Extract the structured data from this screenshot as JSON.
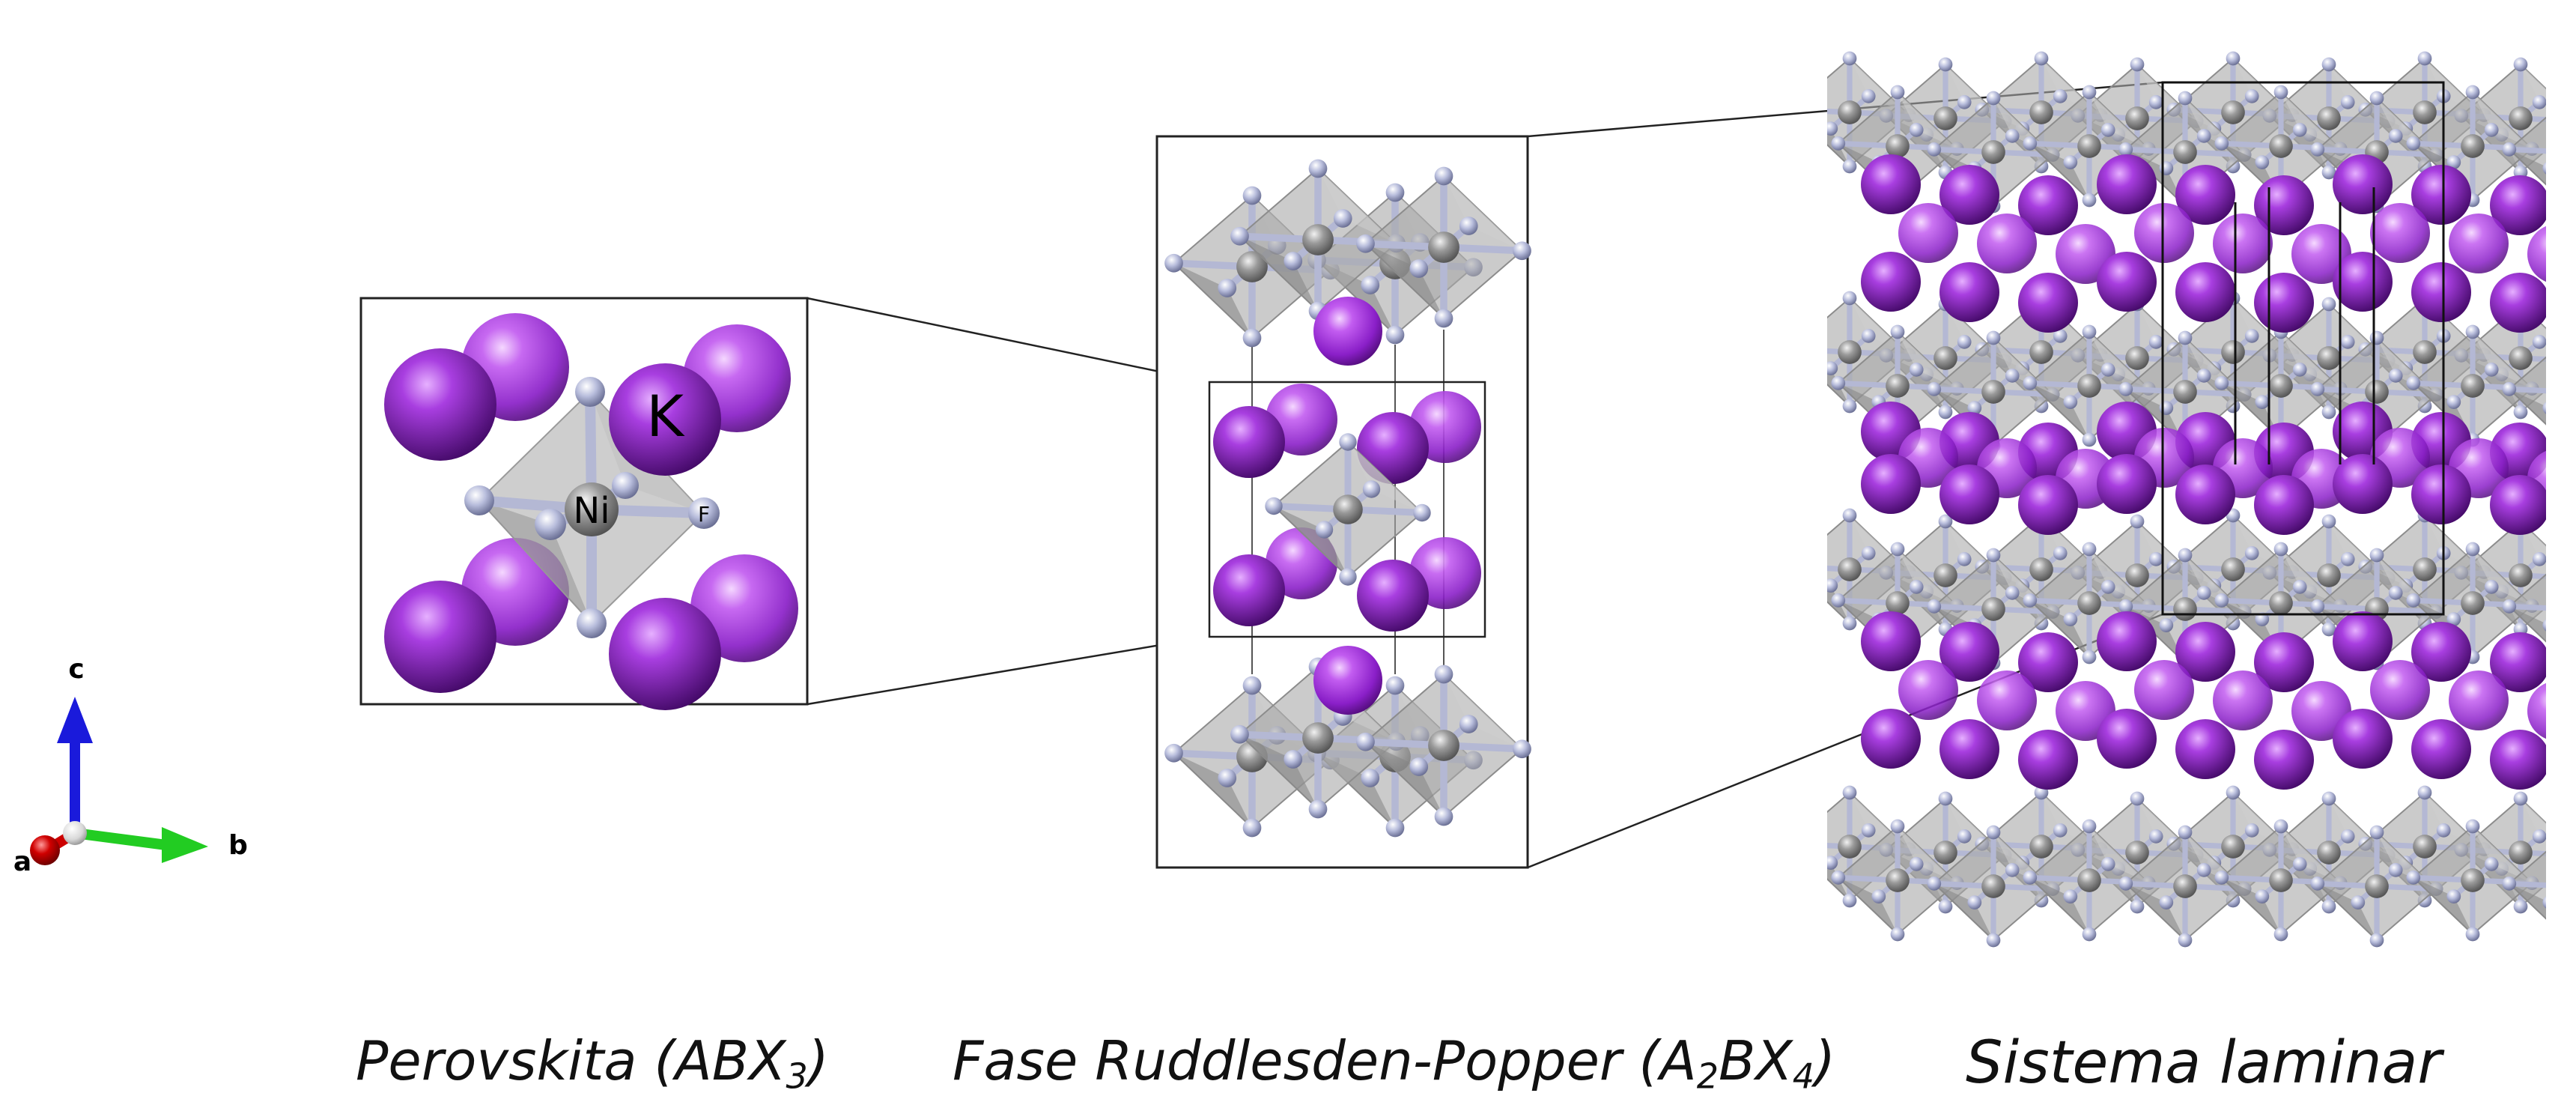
{
  "labels": {
    "a_site": "K",
    "b_site": "Ni",
    "x_site": "F"
  },
  "axes": {
    "a": "a",
    "b": "b",
    "c": "c"
  },
  "captions": {
    "perovskite": {
      "text": "Perovskita (ABX",
      "sub": "3",
      "close": ")"
    },
    "ruddlesden_popper": {
      "text": "Fase Ruddlesden-Popper (A",
      "sub1": "2",
      "mid": "BX",
      "sub2": "4",
      "close": ")"
    },
    "layered": {
      "text": "Sistema laminar"
    }
  },
  "colors": {
    "potassium": "#9b30d9",
    "nickel": "#8a8a8a",
    "fluorine": "#aab0d0",
    "octahedron": "#9a9a9a",
    "axis_a": "#cc0000",
    "axis_b": "#22cc22",
    "axis_c": "#1a1adb"
  }
}
